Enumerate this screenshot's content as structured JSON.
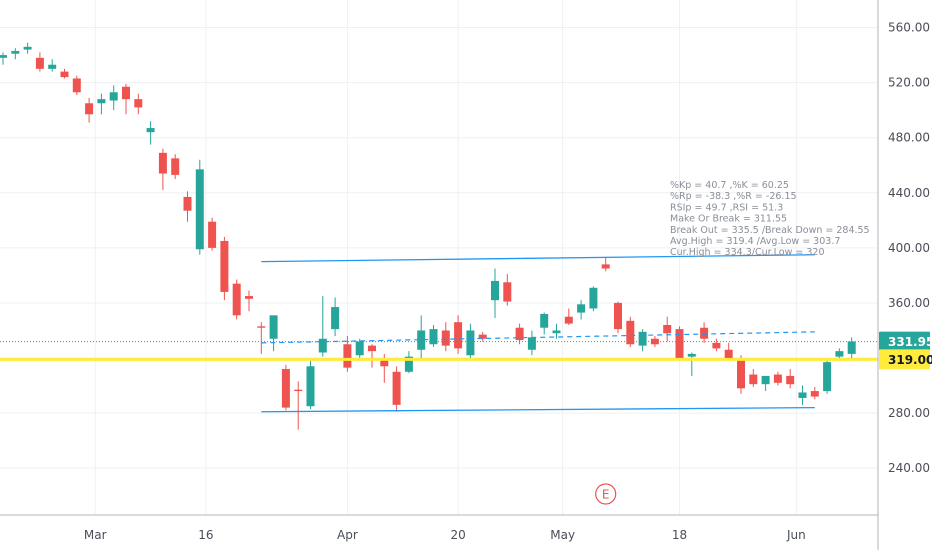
{
  "colors": {
    "up": "#26a69a",
    "down": "#ef5350",
    "channel": "#2196f3",
    "support": "#ffeb3b",
    "current": "#26a69a",
    "grid": "#eef0f3",
    "axis": "#4a4e59",
    "earnings": "#ef5350"
  },
  "chart_data": {
    "type": "candlestick",
    "ylim": [
      206,
      580
    ],
    "y_ticks": [
      240,
      280,
      320,
      360,
      400,
      440,
      480,
      520,
      560
    ],
    "y_tick_labels": [
      "240.00",
      "280.00",
      "320.00",
      "360.00",
      "400.00",
      "440.00",
      "480.00",
      "520.00",
      "560.00"
    ],
    "x_labels": [
      {
        "label": "Mar",
        "bar": 7.5
      },
      {
        "label": "16",
        "bar": 16.5
      },
      {
        "label": "Apr",
        "bar": 28
      },
      {
        "label": "20",
        "bar": 37
      },
      {
        "label": "May",
        "bar": 45.5
      },
      {
        "label": "18",
        "bar": 55
      },
      {
        "label": "Jun",
        "bar": 64.5
      }
    ],
    "candles": [
      {
        "o": 538,
        "h": 542,
        "l": 533,
        "c": 540
      },
      {
        "o": 541,
        "h": 545,
        "l": 537,
        "c": 543
      },
      {
        "o": 544,
        "h": 549,
        "l": 541,
        "c": 546
      },
      {
        "o": 538,
        "h": 542,
        "l": 528,
        "c": 530
      },
      {
        "o": 530,
        "h": 537,
        "l": 528,
        "c": 533
      },
      {
        "o": 528,
        "h": 530,
        "l": 523,
        "c": 524
      },
      {
        "o": 523,
        "h": 525,
        "l": 511,
        "c": 513
      },
      {
        "o": 505,
        "h": 509,
        "l": 491,
        "c": 497
      },
      {
        "o": 505,
        "h": 512,
        "l": 497,
        "c": 508
      },
      {
        "o": 507,
        "h": 518,
        "l": 500,
        "c": 513
      },
      {
        "o": 517,
        "h": 519,
        "l": 497,
        "c": 508
      },
      {
        "o": 508,
        "h": 512,
        "l": 497,
        "c": 502
      },
      {
        "o": 484,
        "h": 492,
        "l": 475,
        "c": 487
      },
      {
        "o": 469,
        "h": 472,
        "l": 442,
        "c": 454
      },
      {
        "o": 465,
        "h": 468,
        "l": 450,
        "c": 453
      },
      {
        "o": 437,
        "h": 441,
        "l": 419,
        "c": 427
      },
      {
        "o": 399,
        "h": 464,
        "l": 395,
        "c": 457
      },
      {
        "o": 419,
        "h": 422,
        "l": 398,
        "c": 400
      },
      {
        "o": 405,
        "h": 408,
        "l": 362,
        "c": 368
      },
      {
        "o": 374,
        "h": 377,
        "l": 348,
        "c": 351
      },
      {
        "o": 365,
        "h": 369,
        "l": 354,
        "c": 363
      },
      {
        "o": 343,
        "h": 346,
        "l": 323,
        "c": 342
      },
      {
        "o": 334,
        "h": 350,
        "l": 325,
        "c": 351
      },
      {
        "o": 312,
        "h": 315,
        "l": 282,
        "c": 284
      },
      {
        "o": 297,
        "h": 303,
        "l": 268,
        "c": 296
      },
      {
        "o": 285,
        "h": 320,
        "l": 283,
        "c": 314
      },
      {
        "o": 324,
        "h": 365,
        "l": 321,
        "c": 334
      },
      {
        "o": 341,
        "h": 364,
        "l": 336,
        "c": 357
      },
      {
        "o": 330,
        "h": 336,
        "l": 310,
        "c": 313
      },
      {
        "o": 322,
        "h": 334,
        "l": 320,
        "c": 332
      },
      {
        "o": 329,
        "h": 330,
        "l": 313,
        "c": 325
      },
      {
        "o": 320,
        "h": 323,
        "l": 302,
        "c": 314
      },
      {
        "o": 310,
        "h": 314,
        "l": 281,
        "c": 286
      },
      {
        "o": 310,
        "h": 325,
        "l": 309,
        "c": 321
      },
      {
        "o": 326,
        "h": 351,
        "l": 318,
        "c": 340
      },
      {
        "o": 330,
        "h": 344,
        "l": 328,
        "c": 341
      },
      {
        "o": 340,
        "h": 346,
        "l": 325,
        "c": 329
      },
      {
        "o": 346,
        "h": 351,
        "l": 323,
        "c": 327
      },
      {
        "o": 322,
        "h": 345,
        "l": 320,
        "c": 340
      },
      {
        "o": 337,
        "h": 339,
        "l": 332,
        "c": 334
      },
      {
        "o": 362,
        "h": 385,
        "l": 349,
        "c": 376
      },
      {
        "o": 375,
        "h": 381,
        "l": 358,
        "c": 361
      },
      {
        "o": 342,
        "h": 345,
        "l": 330,
        "c": 333
      },
      {
        "o": 326,
        "h": 340,
        "l": 322,
        "c": 335
      },
      {
        "o": 342,
        "h": 353,
        "l": 337,
        "c": 352
      },
      {
        "o": 338,
        "h": 345,
        "l": 334,
        "c": 340
      },
      {
        "o": 350,
        "h": 356,
        "l": 344,
        "c": 345
      },
      {
        "o": 353,
        "h": 362,
        "l": 348,
        "c": 359
      },
      {
        "o": 356,
        "h": 372,
        "l": 354,
        "c": 371
      },
      {
        "o": 388,
        "h": 393,
        "l": 383,
        "c": 385
      },
      {
        "o": 360,
        "h": 361,
        "l": 338,
        "c": 341
      },
      {
        "o": 347,
        "h": 350,
        "l": 328,
        "c": 330
      },
      {
        "o": 329,
        "h": 341,
        "l": 325,
        "c": 339
      },
      {
        "o": 334,
        "h": 336,
        "l": 328,
        "c": 330
      },
      {
        "o": 344,
        "h": 350,
        "l": 332,
        "c": 338
      },
      {
        "o": 341,
        "h": 343,
        "l": 318,
        "c": 320
      },
      {
        "o": 321,
        "h": 324,
        "l": 307,
        "c": 323
      },
      {
        "o": 342,
        "h": 346,
        "l": 331,
        "c": 334
      },
      {
        "o": 331,
        "h": 334,
        "l": 325,
        "c": 327
      },
      {
        "o": 326,
        "h": 331,
        "l": 318,
        "c": 319
      },
      {
        "o": 320,
        "h": 322,
        "l": 294,
        "c": 298
      },
      {
        "o": 308,
        "h": 312,
        "l": 299,
        "c": 301
      },
      {
        "o": 301,
        "h": 307,
        "l": 296,
        "c": 307
      },
      {
        "o": 308,
        "h": 310,
        "l": 300,
        "c": 302
      },
      {
        "o": 307,
        "h": 312,
        "l": 298,
        "c": 301
      },
      {
        "o": 291,
        "h": 300,
        "l": 286,
        "c": 295
      },
      {
        "o": 296,
        "h": 299,
        "l": 290,
        "c": 292
      },
      {
        "o": 296,
        "h": 319,
        "l": 294,
        "c": 317
      },
      {
        "o": 321,
        "h": 327,
        "l": 318,
        "c": 325
      },
      {
        "o": 323,
        "h": 335,
        "l": 320,
        "c": 332
      }
    ],
    "channel_lines": [
      {
        "name": "upper",
        "from": {
          "bar": 21,
          "value": 390
        },
        "to": {
          "bar": 66,
          "value": 395
        }
      },
      {
        "name": "lower",
        "from": {
          "bar": 21,
          "value": 281
        },
        "to": {
          "bar": 66,
          "value": 284
        }
      }
    ],
    "dashed_line": {
      "from": {
        "bar": 21,
        "value": 331
      },
      "to": {
        "bar": 66,
        "value": 339
      }
    },
    "support_level": 319.0,
    "current_price": 331.95,
    "price_tags": [
      {
        "label": "331.95",
        "value": 331.95,
        "kind": "current"
      },
      {
        "label": "319.00",
        "value": 319.0,
        "kind": "support"
      }
    ],
    "earnings_marker": {
      "label": "E",
      "bar": 49
    },
    "annotation_lines": [
      "%Kp = 40.7 ,%K = 60.25",
      "%Rp = -38.3 ,%R = -26.15",
      "RSIp = 49.7 ,RSI = 51.3",
      "Make Or Break = 311.55",
      "Break Out = 335.5    /Break Down = 284.55",
      "Avg.High = 319.4    /Avg.Low = 303.7",
      "Cur.High = 334.3/Cur.Low = 320"
    ]
  }
}
